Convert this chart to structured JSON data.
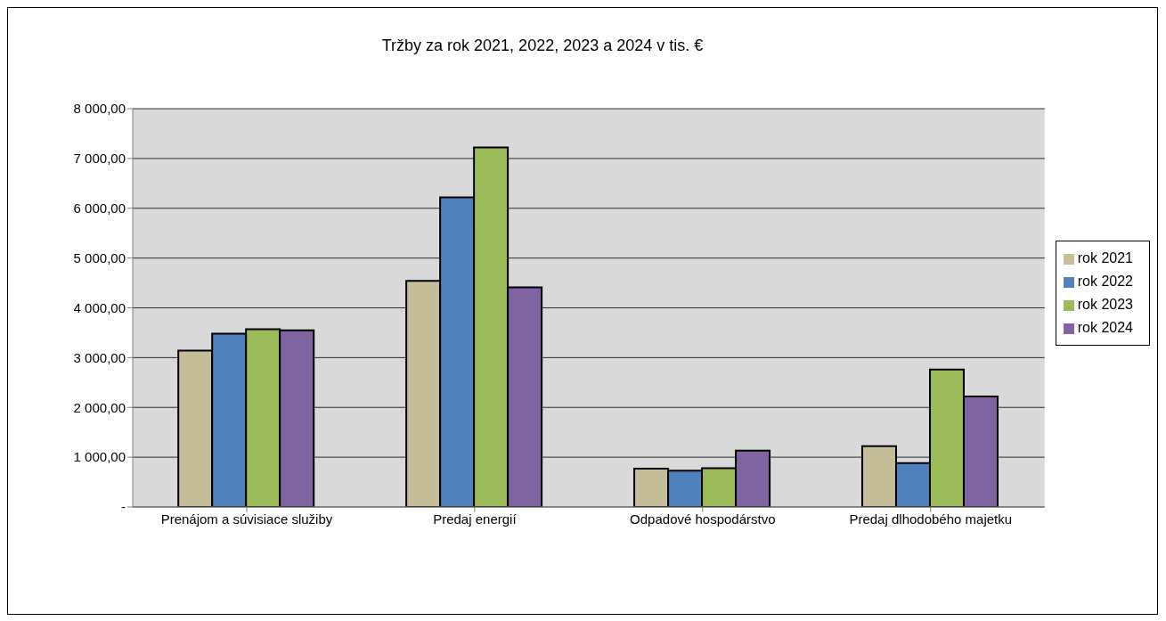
{
  "chart_data": {
    "type": "bar",
    "title": "Tržby za rok 2021, 2022, 2023 a 2024 v tis. €",
    "categories": [
      "Prenájom a súvisiace služiby",
      "Predaj energií",
      "Odpadové hospodárstvo",
      "Predaj dlhodobého majetku"
    ],
    "series": [
      {
        "name": "rok 2021",
        "color": "#c4bd97",
        "values": [
          3140,
          4540,
          770,
          1220
        ]
      },
      {
        "name": "rok 2022",
        "color": "#4f81bd",
        "values": [
          3480,
          6220,
          730,
          880
        ]
      },
      {
        "name": "rok 2023",
        "color": "#9bbb59",
        "values": [
          3570,
          7220,
          780,
          2760
        ]
      },
      {
        "name": "rok 2024",
        "color": "#8064a2",
        "values": [
          3550,
          4410,
          1130,
          2220
        ]
      }
    ],
    "ylim": [
      0,
      8000
    ],
    "yticks": [
      {
        "value": 0,
        "label": "-"
      },
      {
        "value": 1000,
        "label": "1 000,00"
      },
      {
        "value": 2000,
        "label": "2 000,00"
      },
      {
        "value": 3000,
        "label": "3 000,00"
      },
      {
        "value": 4000,
        "label": "4 000,00"
      },
      {
        "value": 5000,
        "label": "5 000,00"
      },
      {
        "value": 6000,
        "label": "6 000,00"
      },
      {
        "value": 7000,
        "label": "7 000,00"
      },
      {
        "value": 8000,
        "label": "8 000,00"
      }
    ],
    "grid": "y",
    "legend": "right"
  }
}
